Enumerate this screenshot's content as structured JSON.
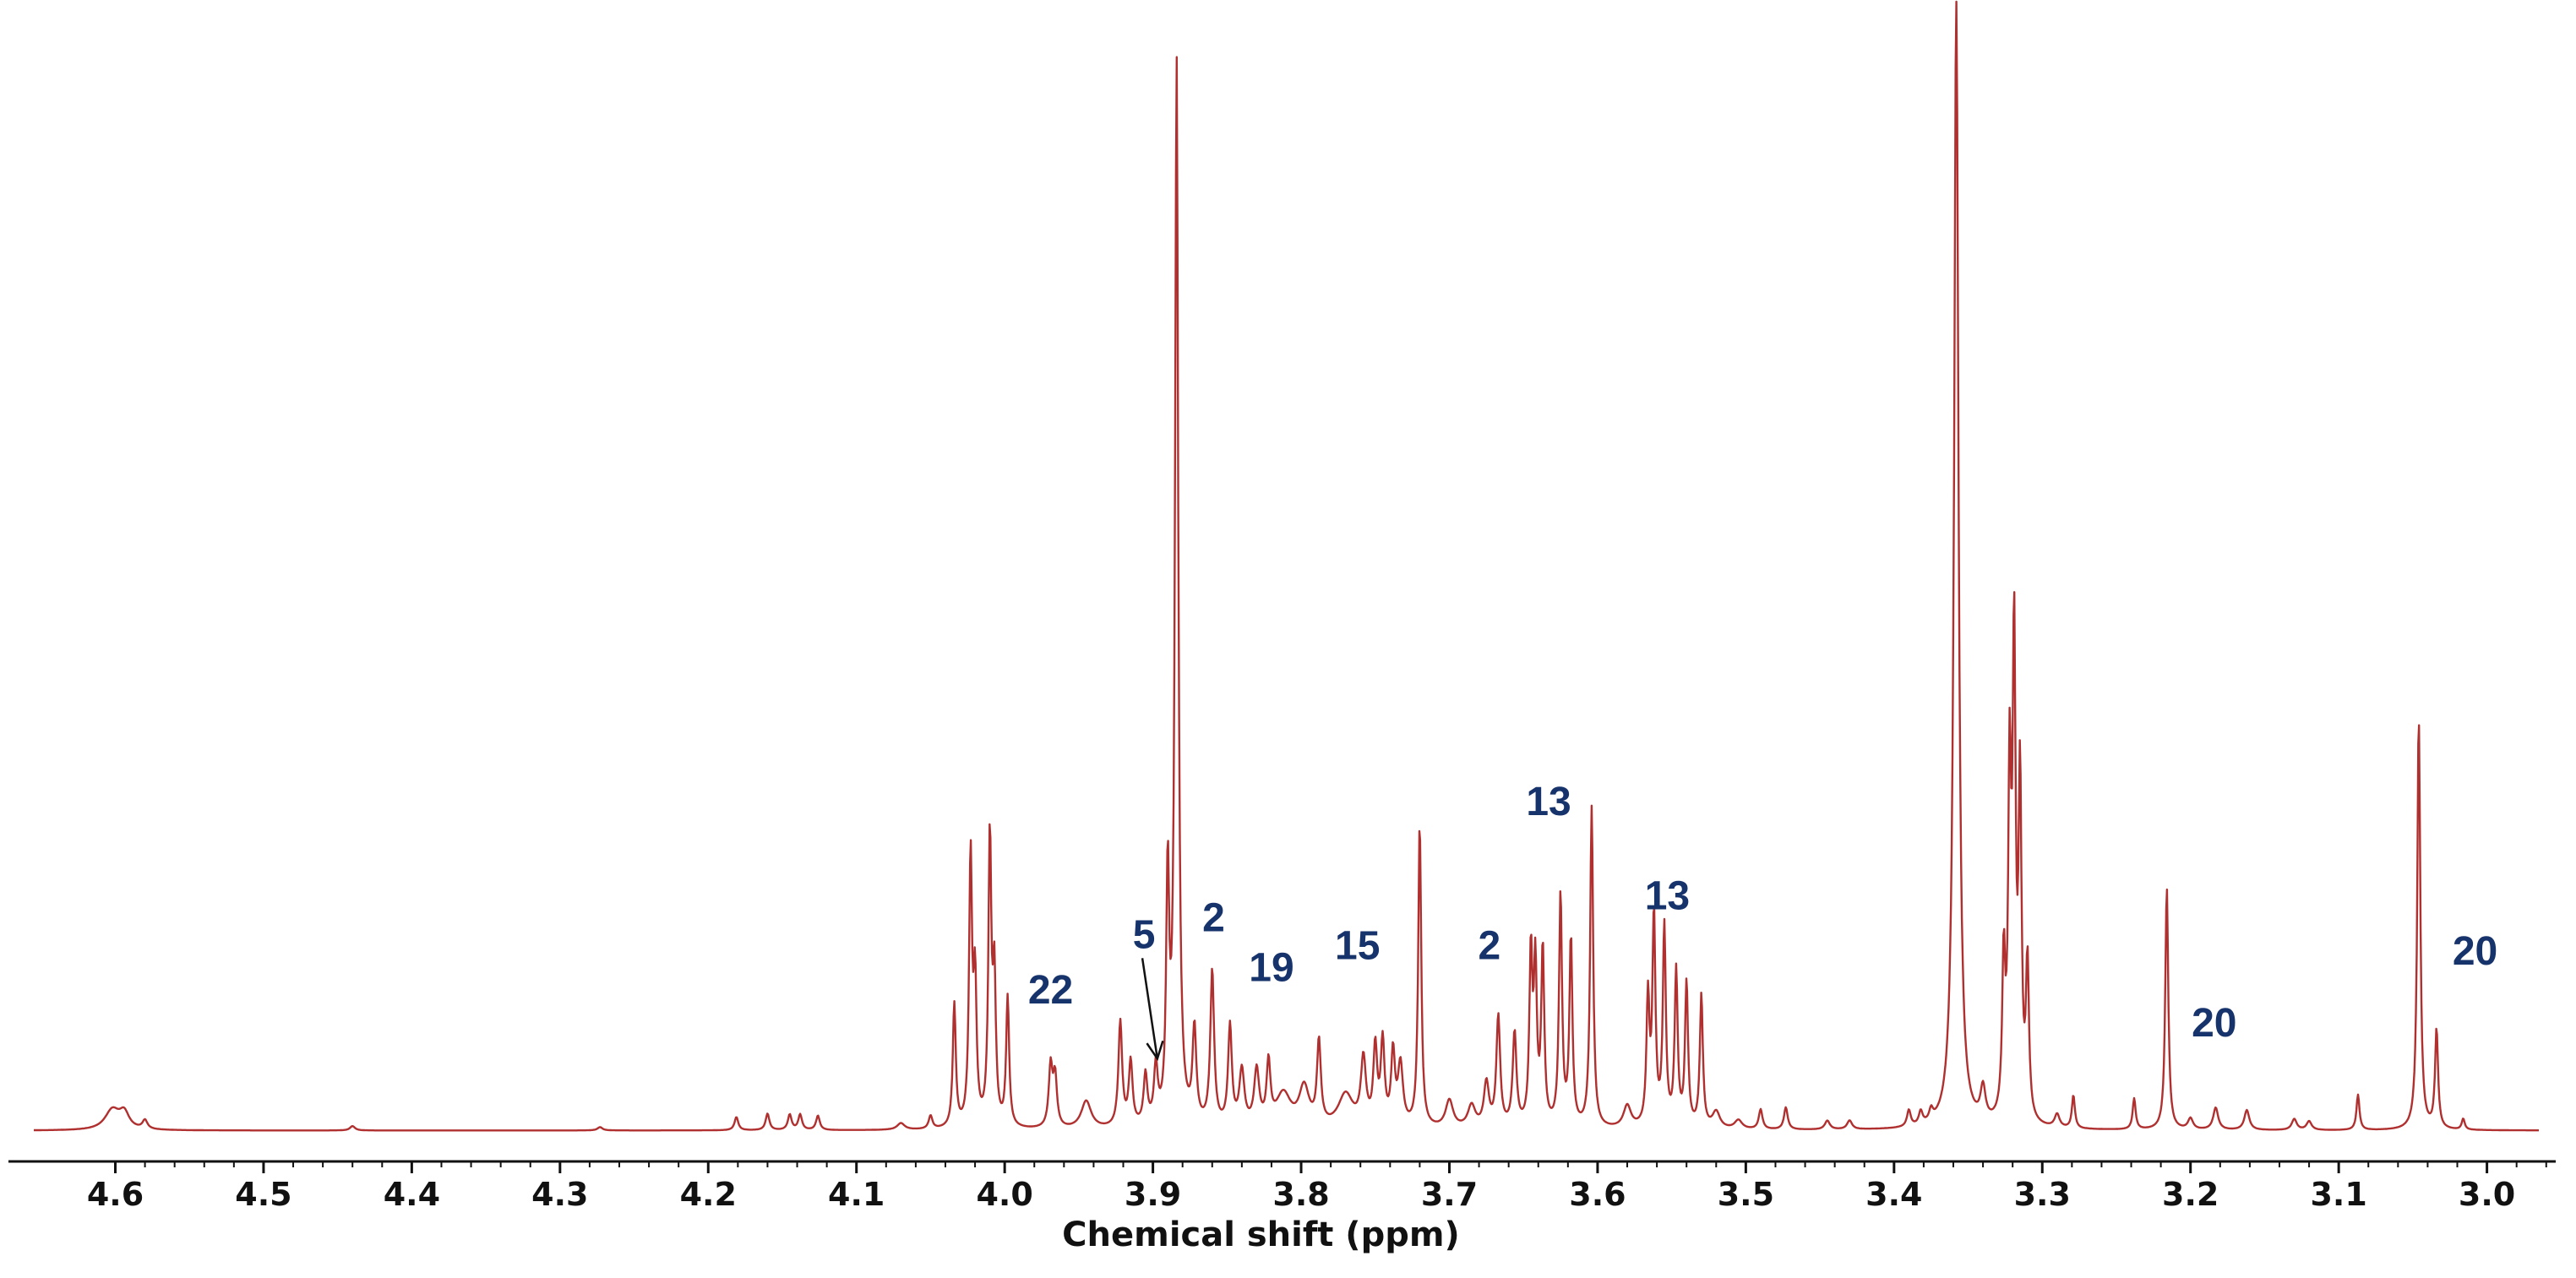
{
  "chart_data": {
    "type": "line",
    "xlabel": "Chemical shift (ppm)",
    "ylabel": "",
    "x_reversed": true,
    "xlim": [
      4.655,
      2.965
    ],
    "ylim": [
      0,
      1.0
    ],
    "x_ticks": [
      4.6,
      4.5,
      4.4,
      4.3,
      4.2,
      4.1,
      4.0,
      3.9,
      3.8,
      3.7,
      3.6,
      3.5,
      3.4,
      3.3,
      3.2,
      3.1,
      3.0
    ],
    "x_tick_labels": [
      "4.6",
      "4.5",
      "4.4",
      "4.3",
      "4.2",
      "4.1",
      "4.0",
      "3.9",
      "3.8",
      "3.7",
      "3.6",
      "3.5",
      "3.4",
      "3.3",
      "3.2",
      "3.1",
      "3.0"
    ],
    "grid": false,
    "legend": "none",
    "colors": {
      "spectrum": "#b03030",
      "labels": "#17336b",
      "axis": "#111111"
    },
    "baseline": 0.005,
    "peaks": [
      [
        4.602,
        0.018,
        0.006
      ],
      [
        4.594,
        0.014,
        0.004
      ],
      [
        4.58,
        0.008,
        0.002
      ],
      [
        4.44,
        0.004,
        0.002
      ],
      [
        4.273,
        0.003,
        0.002
      ],
      [
        4.181,
        0.012,
        0.0015
      ],
      [
        4.16,
        0.015,
        0.0015
      ],
      [
        4.145,
        0.014,
        0.0015
      ],
      [
        4.138,
        0.014,
        0.0015
      ],
      [
        4.126,
        0.013,
        0.0015
      ],
      [
        4.07,
        0.006,
        0.003
      ],
      [
        4.05,
        0.012,
        0.0015
      ],
      [
        4.034,
        0.112,
        0.0012
      ],
      [
        4.023,
        0.243,
        0.0012
      ],
      [
        4.02,
        0.125,
        0.0012
      ],
      [
        4.01,
        0.259,
        0.0012
      ],
      [
        4.007,
        0.13,
        0.0012
      ],
      [
        3.998,
        0.117,
        0.0012
      ],
      [
        3.969,
        0.055,
        0.0015
      ],
      [
        3.966,
        0.045,
        0.0015
      ],
      [
        3.945,
        0.025,
        0.004
      ],
      [
        3.922,
        0.095,
        0.0015
      ],
      [
        3.915,
        0.058,
        0.0015
      ],
      [
        3.905,
        0.045,
        0.0015
      ],
      [
        3.898,
        0.05,
        0.0015
      ],
      [
        3.89,
        0.22,
        0.0012
      ],
      [
        3.884,
        0.96,
        0.0013
      ],
      [
        3.872,
        0.085,
        0.0015
      ],
      [
        3.86,
        0.14,
        0.0015
      ],
      [
        3.848,
        0.09,
        0.0015
      ],
      [
        3.84,
        0.05,
        0.002
      ],
      [
        3.83,
        0.05,
        0.002
      ],
      [
        3.822,
        0.055,
        0.0015
      ],
      [
        3.812,
        0.03,
        0.006
      ],
      [
        3.798,
        0.035,
        0.004
      ],
      [
        3.788,
        0.075,
        0.0015
      ],
      [
        3.77,
        0.03,
        0.006
      ],
      [
        3.758,
        0.06,
        0.002
      ],
      [
        3.75,
        0.07,
        0.0015
      ],
      [
        3.745,
        0.075,
        0.0015
      ],
      [
        3.738,
        0.065,
        0.0015
      ],
      [
        3.733,
        0.055,
        0.002
      ],
      [
        3.72,
        0.275,
        0.0012
      ],
      [
        3.7,
        0.025,
        0.003
      ],
      [
        3.685,
        0.02,
        0.003
      ],
      [
        3.675,
        0.04,
        0.002
      ],
      [
        3.667,
        0.1,
        0.0015
      ],
      [
        3.656,
        0.085,
        0.0015
      ],
      [
        3.645,
        0.155,
        0.0012
      ],
      [
        3.642,
        0.14,
        0.0012
      ],
      [
        3.637,
        0.16,
        0.0012
      ],
      [
        3.625,
        0.21,
        0.0012
      ],
      [
        3.618,
        0.17,
        0.0012
      ],
      [
        3.604,
        0.29,
        0.0012
      ],
      [
        3.58,
        0.02,
        0.003
      ],
      [
        3.566,
        0.115,
        0.0012
      ],
      [
        3.562,
        0.19,
        0.0012
      ],
      [
        3.555,
        0.18,
        0.0012
      ],
      [
        3.547,
        0.14,
        0.0012
      ],
      [
        3.54,
        0.13,
        0.0012
      ],
      [
        3.53,
        0.12,
        0.0012
      ],
      [
        3.52,
        0.015,
        0.003
      ],
      [
        3.505,
        0.008,
        0.003
      ],
      [
        3.49,
        0.018,
        0.0015
      ],
      [
        3.473,
        0.02,
        0.0015
      ],
      [
        3.445,
        0.008,
        0.002
      ],
      [
        3.43,
        0.008,
        0.002
      ],
      [
        3.39,
        0.015,
        0.0015
      ],
      [
        3.382,
        0.012,
        0.0015
      ],
      [
        3.375,
        0.01,
        0.0015
      ],
      [
        3.358,
        1.02,
        0.0018
      ],
      [
        3.34,
        0.03,
        0.002
      ],
      [
        3.326,
        0.14,
        0.0012
      ],
      [
        3.322,
        0.3,
        0.0012
      ],
      [
        3.319,
        0.42,
        0.0012
      ],
      [
        3.315,
        0.3,
        0.0012
      ],
      [
        3.31,
        0.14,
        0.0012
      ],
      [
        3.29,
        0.012,
        0.002
      ],
      [
        3.279,
        0.03,
        0.0012
      ],
      [
        3.238,
        0.028,
        0.0012
      ],
      [
        3.216,
        0.22,
        0.0012
      ],
      [
        3.2,
        0.01,
        0.002
      ],
      [
        3.183,
        0.02,
        0.002
      ],
      [
        3.162,
        0.018,
        0.002
      ],
      [
        3.13,
        0.01,
        0.002
      ],
      [
        3.12,
        0.008,
        0.002
      ],
      [
        3.087,
        0.032,
        0.0012
      ],
      [
        3.046,
        0.375,
        0.0012
      ],
      [
        3.034,
        0.09,
        0.0012
      ],
      [
        3.016,
        0.01,
        0.0012
      ]
    ],
    "annotations": [
      {
        "text": "22",
        "x": 3.969,
        "y": 0.12
      },
      {
        "text": "5",
        "x": 3.906,
        "y": 0.17,
        "arrow_to": [
          3.897,
          0.07
        ]
      },
      {
        "text": "2",
        "x": 3.859,
        "y": 0.185
      },
      {
        "text": "19",
        "x": 3.82,
        "y": 0.14
      },
      {
        "text": "15",
        "x": 3.762,
        "y": 0.16
      },
      {
        "text": "2",
        "x": 3.673,
        "y": 0.16
      },
      {
        "text": "13",
        "x": 3.633,
        "y": 0.29
      },
      {
        "text": "13",
        "x": 3.553,
        "y": 0.205
      },
      {
        "text": "20",
        "x": 3.184,
        "y": 0.09
      },
      {
        "text": "20",
        "x": 3.008,
        "y": 0.155
      }
    ]
  }
}
